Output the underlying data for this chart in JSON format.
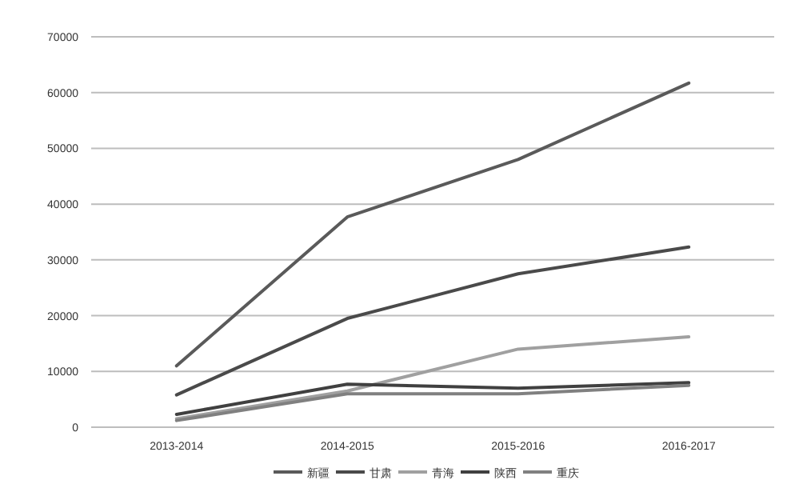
{
  "chart_data": {
    "type": "line",
    "categories": [
      "2013-2014",
      "2014-2015",
      "2015-2016",
      "2016-2017"
    ],
    "series": [
      {
        "name": "新疆",
        "color": "#5a5a5a",
        "values": [
          11000,
          37700,
          48000,
          61700
        ]
      },
      {
        "name": "甘肃",
        "color": "#4a4a4a",
        "values": [
          5800,
          19500,
          27500,
          32300
        ]
      },
      {
        "name": "青海",
        "color": "#a0a0a0",
        "values": [
          1500,
          6500,
          14000,
          16200
        ]
      },
      {
        "name": "陕西",
        "color": "#404040",
        "values": [
          2300,
          7700,
          7000,
          8000
        ]
      },
      {
        "name": "重庆",
        "color": "#808080",
        "values": [
          1200,
          6000,
          6000,
          7500
        ]
      }
    ],
    "ylim": [
      0,
      70000
    ],
    "yticks": [
      0,
      10000,
      20000,
      30000,
      40000,
      50000,
      60000,
      70000
    ],
    "grid": "y",
    "legend": "bottom"
  }
}
